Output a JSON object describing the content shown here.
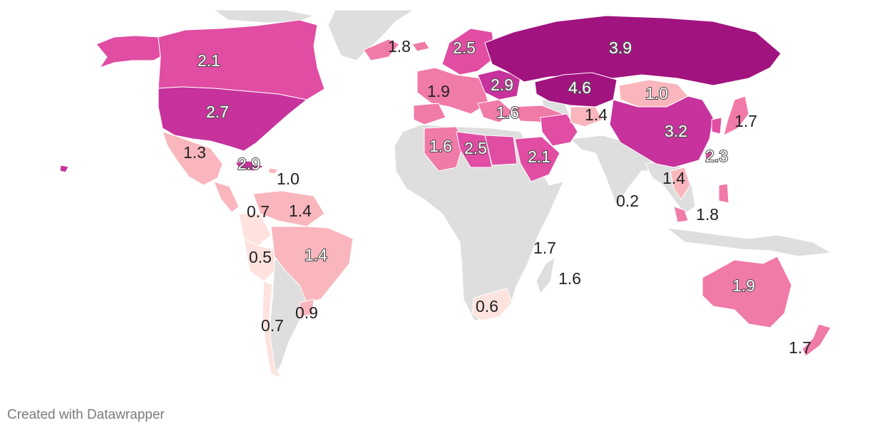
{
  "map": {
    "type": "choropleth",
    "color_scale": {
      "bins": [
        {
          "color": "#fde2de"
        },
        {
          "color": "#f9b6bd"
        },
        {
          "color": "#f07aa8"
        },
        {
          "color": "#e04da3"
        },
        {
          "color": "#c7329c"
        },
        {
          "color": "#a1137f"
        }
      ],
      "no_data_color": "#dedede"
    },
    "regions": [
      {
        "id": "alaska",
        "value": 2.1
      },
      {
        "id": "canada",
        "value": 2.1
      },
      {
        "id": "greenland",
        "value": 1.8
      },
      {
        "id": "usa",
        "value": 2.7
      },
      {
        "id": "hawaii",
        "value": 2.7
      },
      {
        "id": "mexico",
        "value": 1.3
      },
      {
        "id": "cuba",
        "value": 2.9
      },
      {
        "id": "dominican-republic",
        "value": 1.0
      },
      {
        "id": "central-america",
        "value": 1.3
      },
      {
        "id": "venezuela",
        "value": 1.4
      },
      {
        "id": "colombia",
        "value": 0.7
      },
      {
        "id": "peru",
        "value": 0.5
      },
      {
        "id": "brazil",
        "value": 1.4
      },
      {
        "id": "chile",
        "value": 0.7
      },
      {
        "id": "uruguay",
        "value": 0.9
      },
      {
        "id": "iceland",
        "value": 1.8
      },
      {
        "id": "scandinavia",
        "value": 2.5
      },
      {
        "id": "western-europe",
        "value": 1.9
      },
      {
        "id": "iberia",
        "value": 1.9
      },
      {
        "id": "ukraine",
        "value": 2.9
      },
      {
        "id": "balkans",
        "value": 1.6
      },
      {
        "id": "turkey",
        "value": 1.6
      },
      {
        "id": "russia",
        "value": 3.9
      },
      {
        "id": "kazakhstan",
        "value": 4.6
      },
      {
        "id": "mongolia",
        "value": 1.0
      },
      {
        "id": "china",
        "value": 3.2
      },
      {
        "id": "japan",
        "value": 1.7
      },
      {
        "id": "korea",
        "value": 2.3
      },
      {
        "id": "taiwan",
        "value": 2.3
      },
      {
        "id": "algeria",
        "value": 1.6
      },
      {
        "id": "libya",
        "value": 2.5
      },
      {
        "id": "egypt",
        "value": 2.5
      },
      {
        "id": "saudi-arabia",
        "value": 2.1
      },
      {
        "id": "iran",
        "value": 2.1
      },
      {
        "id": "afghanistan",
        "value": 1.4
      },
      {
        "id": "vietnam",
        "value": 1.4
      },
      {
        "id": "malaysia",
        "value": 1.8
      },
      {
        "id": "philippines",
        "value": 1.8
      },
      {
        "id": "south-africa",
        "value": 0.6
      },
      {
        "id": "australia",
        "value": 1.9
      },
      {
        "id": "new-zealand",
        "value": 1.7
      }
    ],
    "labels": [
      {
        "region": "canada",
        "text": "2.1"
      },
      {
        "region": "greenland",
        "text": "1.8"
      },
      {
        "region": "usa",
        "text": "2.7"
      },
      {
        "region": "mexico",
        "text": "1.3"
      },
      {
        "region": "cuba",
        "text": "2.9"
      },
      {
        "region": "dominican-republic",
        "text": "1.0"
      },
      {
        "region": "colombia",
        "text": "0.7"
      },
      {
        "region": "venezuela",
        "text": "1.4"
      },
      {
        "region": "peru",
        "text": "0.5"
      },
      {
        "region": "brazil",
        "text": "1.4"
      },
      {
        "region": "chile",
        "text": "0.7"
      },
      {
        "region": "uruguay",
        "text": "0.9"
      },
      {
        "region": "scandinavia",
        "text": "2.5"
      },
      {
        "region": "western-europe",
        "text": "1.9"
      },
      {
        "region": "ukraine",
        "text": "2.9"
      },
      {
        "region": "balkans",
        "text": "1.6"
      },
      {
        "region": "russia",
        "text": "3.9"
      },
      {
        "region": "kazakhstan",
        "text": "4.6"
      },
      {
        "region": "mongolia",
        "text": "1.0"
      },
      {
        "region": "afghanistan",
        "text": "1.4"
      },
      {
        "region": "japan",
        "text": "1.7"
      },
      {
        "region": "china",
        "text": "3.2"
      },
      {
        "region": "korea",
        "text": "2.3"
      },
      {
        "region": "algeria",
        "text": "1.6"
      },
      {
        "region": "libya",
        "text": "2.5"
      },
      {
        "region": "saudi-arabia",
        "text": "2.1"
      },
      {
        "region": "vietnam",
        "text": "1.4"
      },
      {
        "region": "maldives",
        "text": "0.2"
      },
      {
        "region": "malaysia",
        "text": "1.8"
      },
      {
        "region": "kenya",
        "text": "1.7"
      },
      {
        "region": "mauritius",
        "text": "1.6"
      },
      {
        "region": "south-africa",
        "text": "0.6"
      },
      {
        "region": "australia",
        "text": "1.9"
      },
      {
        "region": "new-zealand",
        "text": "1.7"
      }
    ]
  },
  "footer": {
    "credit": "Created with Datawrapper"
  }
}
